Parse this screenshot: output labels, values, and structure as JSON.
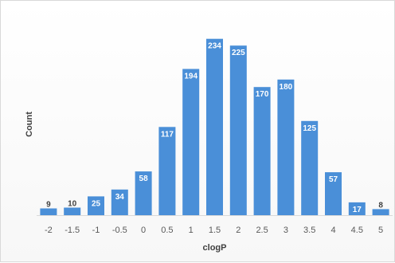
{
  "chart_data": {
    "type": "bar",
    "title": "",
    "xlabel": "clogP",
    "ylabel": "Count",
    "categories": [
      "-2",
      "-1.5",
      "-1",
      "-0.5",
      "0",
      "0.5",
      "1",
      "1.5",
      "2",
      "2.5",
      "3",
      "3.5",
      "4",
      "4.5",
      "5"
    ],
    "values": [
      9,
      10,
      25,
      34,
      58,
      117,
      194,
      234,
      225,
      170,
      180,
      125,
      57,
      17,
      8
    ],
    "ylim": [
      0,
      240
    ],
    "grid": false,
    "legend": "none",
    "bar_color": "#4a8fd8",
    "data_labels": true
  }
}
